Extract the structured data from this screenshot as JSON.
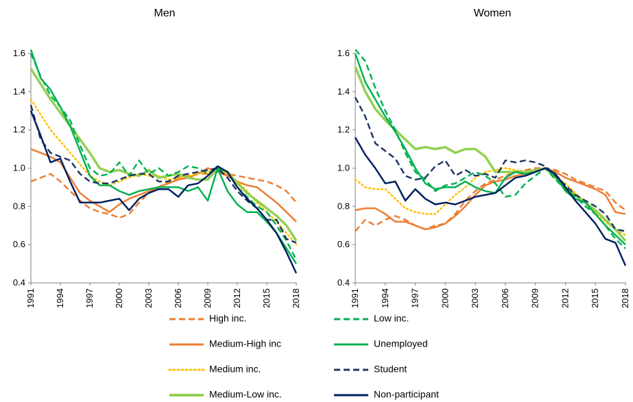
{
  "chart_data": [
    {
      "type": "line",
      "title": "Men",
      "x": [
        1991,
        1992,
        1993,
        1994,
        1995,
        1996,
        1997,
        1998,
        1999,
        2000,
        2001,
        2002,
        2003,
        2004,
        2005,
        2006,
        2007,
        2008,
        2009,
        2010,
        2011,
        2012,
        2013,
        2014,
        2015,
        2016,
        2017,
        2018
      ],
      "xlim": [
        1991,
        2018
      ],
      "xticks": [
        1991,
        1994,
        1997,
        2000,
        2003,
        2006,
        2009,
        2012,
        2015,
        2018
      ],
      "ylim": [
        0.4,
        1.6
      ],
      "yticks": [
        0.4,
        0.6,
        0.8,
        {
          "value": 1,
          "label": "1.0"
        },
        1.2,
        1.4,
        1.6
      ],
      "series": [
        {
          "name": "High inc.",
          "color": "#ED7D31",
          "dash": "dashed",
          "values": [
            0.93,
            0.95,
            0.97,
            0.93,
            0.88,
            0.83,
            0.79,
            0.77,
            0.76,
            0.74,
            0.76,
            0.82,
            0.87,
            0.9,
            0.93,
            0.95,
            0.96,
            0.97,
            0.97,
            0.99,
            0.97,
            0.96,
            0.95,
            0.94,
            0.93,
            0.91,
            0.88,
            0.82
          ]
        },
        {
          "name": "Medium-High inc",
          "color": "#ED7D31",
          "dash": "solid",
          "values": [
            1.1,
            1.08,
            1.06,
            1.03,
            0.95,
            0.87,
            0.83,
            0.8,
            0.77,
            0.81,
            0.84,
            0.86,
            0.88,
            0.9,
            0.92,
            0.94,
            0.95,
            0.97,
            1.0,
            0.98,
            0.96,
            0.93,
            0.91,
            0.9,
            0.86,
            0.82,
            0.77,
            0.72
          ]
        },
        {
          "name": "Medium inc.",
          "color": "#FFC000",
          "dash": "dotted",
          "values": [
            1.36,
            1.28,
            1.2,
            1.14,
            1.08,
            1.02,
            0.96,
            0.93,
            0.91,
            0.93,
            0.95,
            0.97,
            0.96,
            0.96,
            0.94,
            0.95,
            0.96,
            0.97,
            0.98,
            1.0,
            0.97,
            0.93,
            0.88,
            0.82,
            0.77,
            0.72,
            0.66,
            0.6
          ]
        },
        {
          "name": "Medium-Low inc.",
          "color": "#92D050",
          "dash": "solid",
          "values": [
            1.52,
            1.44,
            1.36,
            1.29,
            1.22,
            1.15,
            1.08,
            1.0,
            0.98,
            0.99,
            0.97,
            0.96,
            0.99,
            0.95,
            0.96,
            0.97,
            0.95,
            0.94,
            0.94,
            1.0,
            0.98,
            0.92,
            0.87,
            0.83,
            0.79,
            0.75,
            0.7,
            0.62
          ]
        },
        {
          "name": "Low inc.",
          "color": "#00B050",
          "dash": "dashed",
          "values": [
            1.6,
            1.48,
            1.38,
            1.32,
            1.25,
            1.12,
            1.0,
            0.96,
            0.97,
            1.03,
            0.96,
            1.04,
            0.97,
            1.0,
            0.96,
            0.98,
            1.01,
            1.0,
            0.97,
            1.0,
            0.98,
            0.9,
            0.85,
            0.8,
            0.77,
            0.7,
            0.62,
            0.52
          ]
        },
        {
          "name": "Unemployed",
          "color": "#00B050",
          "dash": "solid",
          "values": [
            1.62,
            1.47,
            1.41,
            1.32,
            1.22,
            1.09,
            0.96,
            0.91,
            0.91,
            0.88,
            0.86,
            0.88,
            0.89,
            0.9,
            0.9,
            0.9,
            0.88,
            0.9,
            0.83,
            1.0,
            0.88,
            0.81,
            0.77,
            0.77,
            0.72,
            0.66,
            0.58,
            0.5
          ]
        },
        {
          "name": "Student",
          "color": "#1F3864",
          "dash": "dashed",
          "values": [
            1.33,
            1.15,
            1.08,
            1.06,
            1.04,
            0.97,
            0.93,
            0.92,
            0.92,
            0.94,
            0.96,
            0.97,
            0.97,
            0.93,
            0.93,
            0.96,
            0.97,
            0.98,
            0.99,
            1.0,
            0.95,
            0.88,
            0.83,
            0.79,
            0.73,
            0.73,
            0.63,
            0.61
          ]
        },
        {
          "name": "Non-participant",
          "color": "#002060",
          "dash": "solid",
          "values": [
            1.3,
            1.17,
            1.03,
            1.05,
            0.93,
            0.82,
            0.82,
            0.82,
            0.83,
            0.84,
            0.78,
            0.84,
            0.87,
            0.89,
            0.89,
            0.85,
            0.91,
            0.92,
            0.96,
            1.01,
            0.98,
            0.9,
            0.84,
            0.79,
            0.73,
            0.66,
            0.56,
            0.45
          ]
        }
      ]
    },
    {
      "type": "line",
      "title": "Women",
      "x": [
        1991,
        1992,
        1993,
        1994,
        1995,
        1996,
        1997,
        1998,
        1999,
        2000,
        2001,
        2002,
        2003,
        2004,
        2005,
        2006,
        2007,
        2008,
        2009,
        2010,
        2011,
        2012,
        2013,
        2014,
        2015,
        2016,
        2017,
        2018
      ],
      "xlim": [
        1991,
        2018
      ],
      "xticks": [
        1991,
        1994,
        1997,
        2000,
        2003,
        2006,
        2009,
        2012,
        2015,
        2018
      ],
      "ylim": [
        0.4,
        1.6
      ],
      "yticks": [
        0.4,
        0.6,
        0.8,
        {
          "value": 1,
          "label": "1.0"
        },
        1.2,
        1.4,
        1.6
      ],
      "series": [
        {
          "values": [
            0.67,
            0.73,
            0.7,
            0.73,
            0.75,
            0.73,
            0.7,
            0.68,
            0.7,
            0.71,
            0.76,
            0.83,
            0.88,
            0.92,
            0.94,
            0.96,
            0.98,
            0.99,
            1.0,
            1.0,
            0.99,
            0.97,
            0.94,
            0.92,
            0.9,
            0.88,
            0.82,
            0.78
          ]
        },
        {
          "values": [
            0.78,
            0.79,
            0.79,
            0.76,
            0.72,
            0.72,
            0.7,
            0.68,
            0.69,
            0.71,
            0.75,
            0.8,
            0.86,
            0.91,
            0.93,
            0.94,
            0.96,
            0.97,
            0.99,
            1.0,
            0.98,
            0.95,
            0.93,
            0.91,
            0.89,
            0.86,
            0.77,
            0.76
          ]
        },
        {
          "values": [
            0.94,
            0.9,
            0.89,
            0.89,
            0.84,
            0.79,
            0.77,
            0.76,
            0.76,
            0.81,
            0.86,
            0.9,
            0.95,
            0.98,
            0.99,
            1.0,
            0.99,
            0.98,
            0.99,
            1.0,
            0.96,
            0.92,
            0.87,
            0.82,
            0.77,
            0.72,
            0.68,
            0.65
          ]
        },
        {
          "values": [
            1.53,
            1.4,
            1.31,
            1.25,
            1.2,
            1.15,
            1.1,
            1.11,
            1.1,
            1.11,
            1.08,
            1.1,
            1.1,
            1.06,
            0.98,
            0.98,
            0.98,
            0.98,
            0.99,
            1.0,
            0.95,
            0.9,
            0.86,
            0.82,
            0.78,
            0.73,
            0.68,
            0.62
          ]
        },
        {
          "values": [
            1.62,
            1.56,
            1.42,
            1.3,
            1.2,
            1.08,
            0.98,
            0.94,
            0.88,
            0.91,
            0.92,
            0.95,
            0.98,
            0.96,
            0.92,
            0.85,
            0.86,
            0.92,
            0.96,
            1.0,
            0.94,
            0.89,
            0.85,
            0.8,
            0.76,
            0.7,
            0.63,
            0.58
          ]
        },
        {
          "values": [
            1.6,
            1.45,
            1.36,
            1.27,
            1.19,
            1.1,
            1.0,
            0.92,
            0.89,
            0.9,
            0.9,
            0.93,
            0.9,
            0.88,
            0.87,
            0.95,
            0.98,
            0.97,
            0.98,
            1.0,
            0.96,
            0.88,
            0.84,
            0.82,
            0.76,
            0.7,
            0.65,
            0.6
          ]
        },
        {
          "values": [
            1.37,
            1.27,
            1.13,
            1.09,
            1.05,
            0.96,
            0.94,
            0.95,
            1.01,
            1.04,
            0.96,
            0.99,
            0.96,
            0.97,
            0.95,
            1.04,
            1.03,
            1.04,
            1.03,
            1.01,
            0.96,
            0.91,
            0.86,
            0.83,
            0.8,
            0.76,
            0.68,
            0.67
          ]
        },
        {
          "values": [
            1.16,
            1.07,
            1.0,
            0.92,
            0.93,
            0.83,
            0.89,
            0.84,
            0.81,
            0.82,
            0.81,
            0.83,
            0.85,
            0.86,
            0.87,
            0.91,
            0.95,
            0.96,
            0.98,
            1.0,
            0.97,
            0.9,
            0.83,
            0.77,
            0.71,
            0.63,
            0.61,
            0.49
          ]
        }
      ]
    }
  ]
}
